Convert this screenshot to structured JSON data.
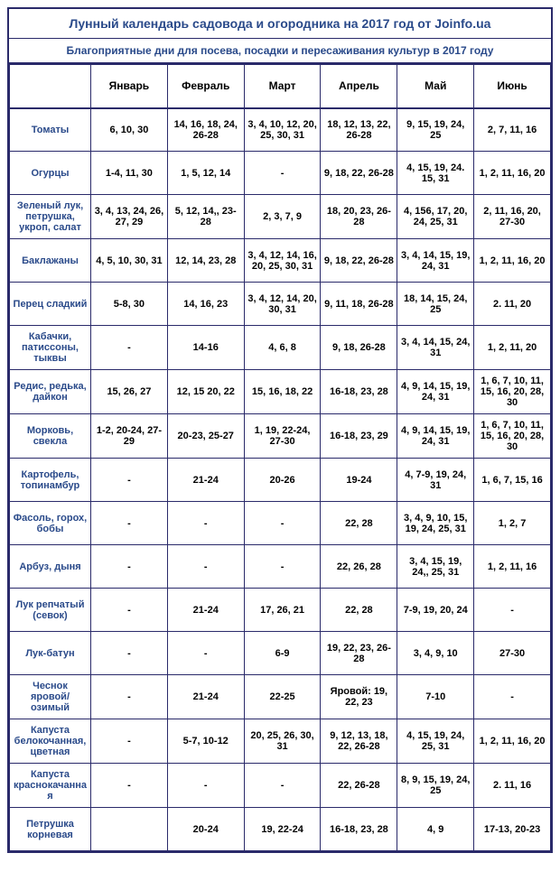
{
  "title": "Лунный календарь садовода и огородника на 2017 год от Joinfo.ua",
  "subtitle": "Благоприятные дни для посева, посадки и пересаживания культур в 2017 году",
  "columns": [
    "",
    "Январь",
    "Февраль",
    "Март",
    "Апрель",
    "Май",
    "Июнь"
  ],
  "rows": [
    {
      "name": "Томаты",
      "cells": [
        "6, 10, 30",
        "14, 16, 18, 24, 26-28",
        "3, 4, 10, 12, 20, 25, 30, 31",
        "18, 12, 13, 22, 26-28",
        "9, 15, 19, 24, 25",
        "2, 7, 11, 16"
      ]
    },
    {
      "name": "Огурцы",
      "cells": [
        "1-4, 11, 30",
        "1, 5, 12, 14",
        "-",
        "9, 18, 22, 26-28",
        "4, 15, 19, 24. 15, 31",
        "1, 2, 11, 16, 20"
      ]
    },
    {
      "name": "Зеленый лук, петрушка, укроп, салат",
      "cells": [
        "3, 4, 13, 24, 26, 27, 29",
        "5, 12, 14,, 23-28",
        "2, 3, 7, 9",
        "18, 20, 23, 26-28",
        "4, 156, 17, 20, 24, 25, 31",
        "2, 11, 16, 20, 27-30"
      ]
    },
    {
      "name": "Баклажаны",
      "cells": [
        "4, 5, 10, 30, 31",
        "12, 14, 23, 28",
        "3, 4, 12, 14, 16, 20, 25, 30, 31",
        "9, 18, 22, 26-28",
        "3, 4, 14, 15, 19, 24, 31",
        "1, 2, 11, 16, 20"
      ]
    },
    {
      "name": "Перец сладкий",
      "cells": [
        "5-8, 30",
        "14, 16, 23",
        "3, 4, 12, 14, 20, 30, 31",
        "9, 11, 18, 26-28",
        "18, 14, 15, 24, 25",
        "2. 11, 20"
      ]
    },
    {
      "name": "Кабачки, патиссоны, тыквы",
      "cells": [
        "-",
        "14-16",
        "4, 6, 8",
        "9, 18, 26-28",
        "3, 4, 14, 15, 24, 31",
        "1, 2, 11, 20"
      ]
    },
    {
      "name": "Редис, редька, дайкон",
      "cells": [
        "15, 26, 27",
        "12, 15 20, 22",
        "15, 16, 18, 22",
        "16-18, 23, 28",
        "4, 9, 14, 15, 19, 24, 31",
        "1, 6, 7, 10, 11, 15, 16, 20, 28, 30"
      ]
    },
    {
      "name": "Морковь, свекла",
      "cells": [
        "1-2, 20-24, 27-29",
        "20-23, 25-27",
        "1, 19, 22-24, 27-30",
        "16-18, 23, 29",
        "4, 9, 14, 15, 19, 24, 31",
        "1, 6, 7, 10, 11, 15, 16, 20, 28, 30"
      ]
    },
    {
      "name": "Картофель, топинамбур",
      "cells": [
        "-",
        "21-24",
        "20-26",
        "19-24",
        "4, 7-9, 19, 24, 31",
        "1, 6, 7, 15, 16"
      ]
    },
    {
      "name": "Фасоль, горох, бобы",
      "cells": [
        "-",
        "-",
        "-",
        "22, 28",
        "3, 4, 9, 10, 15, 19, 24, 25, 31",
        "1, 2, 7"
      ]
    },
    {
      "name": "Арбуз, дыня",
      "cells": [
        "-",
        "-",
        "-",
        "22, 26, 28",
        "3, 4, 15, 19, 24,, 25, 31",
        "1, 2, 11, 16"
      ]
    },
    {
      "name": "Лук репчатый (севок)",
      "cells": [
        "-",
        "21-24",
        "17, 26, 21",
        "22, 28",
        "7-9, 19, 20, 24",
        "-"
      ]
    },
    {
      "name": "Лук-батун",
      "cells": [
        "-",
        "-",
        "6-9",
        "19, 22, 23, 26-28",
        "3, 4, 9, 10",
        "27-30"
      ]
    },
    {
      "name": "Чеснок яровой/озимый",
      "cells": [
        "-",
        "21-24",
        "22-25",
        "Яровой: 19, 22, 23",
        "7-10",
        "-"
      ]
    },
    {
      "name": "Капуста белокочанная, цветная",
      "cells": [
        "-",
        "5-7, 10-12",
        "20, 25, 26, 30, 31",
        "9, 12, 13, 18, 22, 26-28",
        "4, 15, 19, 24, 25, 31",
        "1, 2, 11, 16, 20"
      ]
    },
    {
      "name": "Капуста краснокачанная",
      "cells": [
        "-",
        "-",
        "-",
        "22, 26-28",
        "8, 9, 15, 19, 24, 25",
        "2. 11, 16"
      ]
    },
    {
      "name": "Петрушка корневая",
      "cells": [
        "",
        "20-24",
        "19, 22-24",
        "16-18, 23, 28",
        "4, 9",
        "17-13, 20-23"
      ]
    }
  ],
  "style": {
    "border_color": "#2a2a6a",
    "header_text_color": "#2a4a8a",
    "cell_text_color": "#000000",
    "background": "#ffffff",
    "title_fontsize": 14,
    "subtitle_fontsize": 12,
    "header_fontsize": 12,
    "cell_fontsize": 11
  }
}
